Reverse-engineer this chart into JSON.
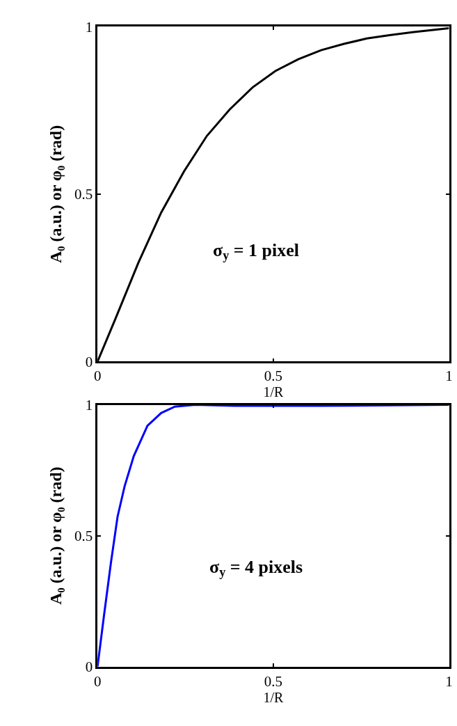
{
  "chart_data": [
    {
      "type": "line",
      "x": [
        0,
        0.051,
        0.116,
        0.181,
        0.246,
        0.311,
        0.376,
        0.441,
        0.506,
        0.571,
        0.636,
        0.701,
        0.766,
        0.831,
        0.896,
        1
      ],
      "series": [
        {
          "color": "#000000",
          "values": [
            0,
            0.128,
            0.295,
            0.445,
            0.568,
            0.674,
            0.753,
            0.819,
            0.868,
            0.903,
            0.93,
            0.949,
            0.965,
            0.975,
            0.984,
            0.996
          ]
        }
      ],
      "xlim": [
        0,
        1
      ],
      "ylim": [
        0,
        1
      ],
      "xticks": [
        0,
        0.5,
        1
      ],
      "yticks": [
        0,
        0.5,
        1
      ],
      "xlabel": "1/R",
      "ylabel": "A₀ (a.u.) or φ₀ (rad)",
      "annotations": [
        "σ$_{y}$ = 1 pixel"
      ],
      "line_style": "solid"
    },
    {
      "type": "line",
      "x": [
        0,
        0.018,
        0.038,
        0.057,
        0.077,
        0.103,
        0.142,
        0.181,
        0.22,
        0.278,
        0.389,
        0.636,
        1
      ],
      "series": [
        {
          "color": "#0000ff",
          "values": [
            0,
            0.191,
            0.396,
            0.573,
            0.689,
            0.804,
            0.92,
            0.969,
            0.993,
            1.0,
            0.996,
            0.996,
            1.0
          ]
        }
      ],
      "xlim": [
        0,
        1
      ],
      "ylim": [
        0,
        1
      ],
      "xticks": [
        0,
        0.5,
        1
      ],
      "yticks": [
        0,
        0.5,
        1
      ],
      "xlabel": "1/R",
      "ylabel": "A₀ (a.u.) or φ₀ (rad)",
      "annotations": [
        "σ$_{y}$ = 4 pixels"
      ],
      "line_style": "solid"
    }
  ]
}
